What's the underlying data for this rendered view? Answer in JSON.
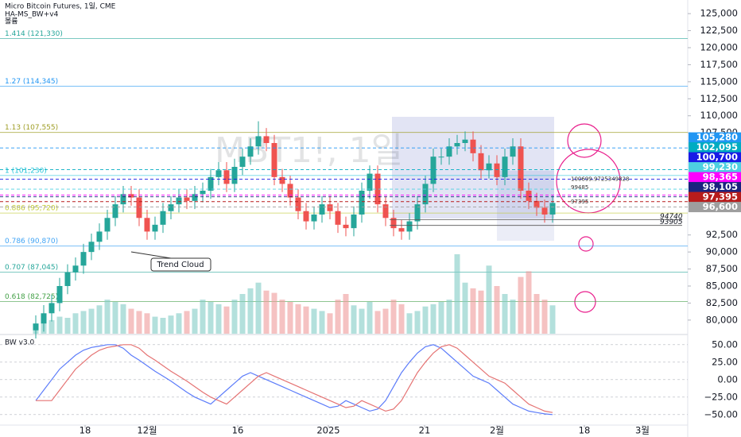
{
  "header": {
    "title": "Micro Bitcoin Futures, 1일, CME",
    "indicator1": "HA-MS_BW+v4",
    "indicator2": "볼륨",
    "watermark": "MBT1!, 1일"
  },
  "chart_data": [
    {
      "type": "candlestick",
      "up_color": "#26a69a",
      "down_color": "#ef5350",
      "volume_up_color": "#80cbc4",
      "volume_down_color": "#ef9a9a",
      "ylim": [
        78000,
        127000
      ],
      "xlim": [
        -4.5,
        82
      ],
      "yticks": [
        {
          "value": 125000,
          "label": "125,000"
        },
        {
          "value": 122500,
          "label": "122,500"
        },
        {
          "value": 120000,
          "label": "120,000"
        },
        {
          "value": 117500,
          "label": "117,500"
        },
        {
          "value": 115000,
          "label": "115,000"
        },
        {
          "value": 112500,
          "label": "112,500"
        },
        {
          "value": 110000,
          "label": "110,000"
        },
        {
          "value": 107500,
          "label": "107,500"
        },
        {
          "value": 92500,
          "label": "92,500"
        },
        {
          "value": 90000,
          "label": "90,000"
        },
        {
          "value": 87500,
          "label": "87,500"
        },
        {
          "value": 85000,
          "label": "85,000"
        },
        {
          "value": 82500,
          "label": "82,500"
        },
        {
          "value": 80000,
          "label": "80,000"
        }
      ],
      "xticks": [
        {
          "value": 6.2,
          "label": "18"
        },
        {
          "value": 14,
          "label": "12월"
        },
        {
          "value": 25.4,
          "label": "16"
        },
        {
          "value": 36.8,
          "label": "2025"
        },
        {
          "value": 48.9,
          "label": "21"
        },
        {
          "value": 58,
          "label": "2월"
        },
        {
          "value": 69,
          "label": "18"
        },
        {
          "value": 76.3,
          "label": "3월"
        }
      ],
      "open": [
        78500,
        79500,
        81000,
        82500,
        85000,
        87000,
        88000,
        90000,
        91500,
        93000,
        95000,
        97000,
        98500,
        98000,
        95000,
        93000,
        94000,
        96000,
        97000,
        98000,
        97500,
        98500,
        99000,
        101000,
        102000,
        100000,
        102500,
        104000,
        105500,
        107000,
        106000,
        101000,
        100000,
        98000,
        96000,
        94500,
        95500,
        97000,
        96000,
        94000,
        93500,
        95500,
        99000,
        101500,
        97000,
        95000,
        93500,
        93000,
        94500,
        97000,
        100000,
        104000,
        104000,
        105500,
        106000,
        106500,
        104500,
        102000,
        103000,
        101000,
        104000,
        105500,
        99000,
        97500,
        96500,
        95500
      ],
      "high": [
        80700,
        82200,
        83700,
        86200,
        88200,
        89200,
        91200,
        92700,
        94200,
        96200,
        98200,
        99700,
        99700,
        99200,
        96200,
        95200,
        97200,
        98200,
        99200,
        99200,
        99700,
        100200,
        102200,
        103200,
        103200,
        103700,
        105200,
        106700,
        109200,
        108200,
        107200,
        102200,
        101200,
        99200,
        97200,
        96700,
        98200,
        98200,
        97200,
        95200,
        96700,
        100200,
        102700,
        102700,
        98200,
        96200,
        94700,
        95700,
        98200,
        101200,
        105200,
        105200,
        106700,
        107200,
        107700,
        107700,
        105700,
        104200,
        104200,
        105200,
        106700,
        106700,
        100200,
        98700,
        97700,
        98400
      ],
      "low": [
        77300,
        78300,
        79800,
        81300,
        83800,
        85800,
        86800,
        88800,
        90300,
        91800,
        93800,
        95800,
        96800,
        93800,
        91800,
        91800,
        92800,
        94800,
        95800,
        96300,
        96300,
        97300,
        97800,
        99800,
        98800,
        98800,
        101300,
        102800,
        104300,
        104800,
        99800,
        98800,
        96800,
        94800,
        93300,
        93300,
        94300,
        94800,
        92800,
        92300,
        92300,
        94300,
        97800,
        95800,
        93800,
        92300,
        91800,
        91800,
        93300,
        95800,
        98800,
        102800,
        102800,
        104300,
        104800,
        103300,
        100800,
        100800,
        99800,
        99800,
        102800,
        97800,
        96300,
        95300,
        94300,
        94300
      ],
      "close": [
        79500,
        81000,
        82500,
        85000,
        87000,
        88000,
        90000,
        91500,
        93000,
        95000,
        97000,
        98500,
        98000,
        95000,
        93000,
        94000,
        96000,
        97000,
        98000,
        97500,
        98500,
        99000,
        101000,
        102000,
        100000,
        102500,
        104000,
        105500,
        107000,
        106000,
        101000,
        100000,
        98000,
        96000,
        94500,
        95500,
        97000,
        96000,
        94000,
        93500,
        95500,
        99000,
        101500,
        97000,
        95000,
        93500,
        93000,
        94500,
        97000,
        100000,
        104000,
        104000,
        105500,
        106000,
        106500,
        104500,
        102000,
        103000,
        101000,
        104000,
        105500,
        99000,
        97500,
        96500,
        95500,
        97200
      ],
      "volume": [
        8,
        10,
        12,
        15,
        14,
        18,
        20,
        22,
        25,
        30,
        28,
        26,
        22,
        20,
        18,
        15,
        14,
        16,
        18,
        20,
        22,
        30,
        28,
        26,
        24,
        30,
        35,
        40,
        45,
        38,
        36,
        30,
        28,
        26,
        24,
        22,
        20,
        18,
        30,
        35,
        25,
        22,
        28,
        20,
        22,
        30,
        26,
        18,
        20,
        24,
        26,
        28,
        30,
        70,
        45,
        40,
        38,
        60,
        42,
        35,
        30,
        50,
        55,
        35,
        30,
        25
      ],
      "levels": [
        {
          "label": "1.414 (121,330)",
          "value": 121330,
          "color": "#26a69a"
        },
        {
          "label": "1.27 (114,345)",
          "value": 114345,
          "color": "#2196f3"
        },
        {
          "label": "1.13 (107,555)",
          "value": 107555,
          "color": "#9e9d24"
        },
        {
          "label": "1 (101,230)",
          "value": 101230,
          "color": "#26c6da"
        },
        {
          "label": "0.886 (95,720)",
          "value": 95720,
          "color": "#c0ca33"
        },
        {
          "label": "0.786 (90,870)",
          "value": 90870,
          "color": "#42a5f5"
        },
        {
          "label": "0.707 (87,045)",
          "value": 87045,
          "color": "#26a69a"
        },
        {
          "label": "0.618 (82,725)",
          "value": 82725,
          "color": "#43a047"
        }
      ],
      "price_labels": [
        {
          "value": 105280,
          "label": "105,280",
          "color": "#2196f3"
        },
        {
          "value": 102095,
          "label": "102,095",
          "color": "#00acc1"
        },
        {
          "value": 100700,
          "label": "100,700",
          "color": "#1a1ae6"
        },
        {
          "value": 99230,
          "label": "99,230",
          "color": "#4dd0e1"
        },
        {
          "value": 98365,
          "label": "98,365",
          "color": "#ff00ff"
        },
        {
          "value": 98105,
          "label": "98,105",
          "color": "#1a237e"
        },
        {
          "value": 97395,
          "label": "97,395",
          "color": "#b71c1c"
        },
        {
          "value": 96600,
          "label": "96,600",
          "color": "#9e9e9e"
        }
      ],
      "annotations": [
        {
          "text": "Trend Cloud"
        },
        {
          "text": "94740",
          "value": 94740
        },
        {
          "text": "93905",
          "value": 93905
        },
        {
          "text": "100699.9725349828",
          "value": 100699.9725349828
        },
        {
          "text": "99485",
          "value": 99485
        },
        {
          "text": "97395",
          "value": 97395
        }
      ]
    },
    {
      "type": "line",
      "title": "BW v3.0",
      "ylim": [
        -65,
        60
      ],
      "yticks": [
        {
          "value": 50,
          "label": "50.00"
        },
        {
          "value": 25,
          "label": "25.00"
        },
        {
          "value": 0,
          "label": "0.00"
        },
        {
          "value": -25,
          "label": "−25.00"
        },
        {
          "value": -50,
          "label": "−50.00"
        }
      ],
      "series": [
        {
          "color": "#5c7cfa",
          "values": [
            -30,
            -15,
            0,
            15,
            25,
            35,
            42,
            46,
            48,
            50,
            50,
            45,
            35,
            28,
            20,
            12,
            5,
            -2,
            -10,
            -18,
            -25,
            -30,
            -35,
            -25,
            -15,
            -5,
            5,
            10,
            5,
            0,
            -5,
            -10,
            -15,
            -20,
            -25,
            -30,
            -35,
            -40,
            -38,
            -30,
            -35,
            -40,
            -45,
            -42,
            -30,
            -10,
            10,
            25,
            38,
            47,
            50,
            45,
            35,
            25,
            15,
            5,
            0,
            -5,
            -15,
            -25,
            -35,
            -40,
            -45,
            -47,
            -49,
            -50
          ]
        },
        {
          "color": "#e57373",
          "values": [
            -30,
            -30,
            -30,
            -15,
            0,
            15,
            25,
            35,
            42,
            46,
            48,
            50,
            50,
            45,
            35,
            28,
            20,
            12,
            5,
            -2,
            -10,
            -18,
            -25,
            -30,
            -35,
            -25,
            -15,
            -5,
            5,
            10,
            5,
            0,
            -5,
            -10,
            -15,
            -20,
            -25,
            -30,
            -35,
            -40,
            -38,
            -30,
            -35,
            -40,
            -45,
            -42,
            -30,
            -10,
            10,
            25,
            38,
            47,
            50,
            45,
            35,
            25,
            15,
            5,
            0,
            -5,
            -15,
            -25,
            -35,
            -40,
            -45,
            -47
          ]
        }
      ]
    }
  ]
}
